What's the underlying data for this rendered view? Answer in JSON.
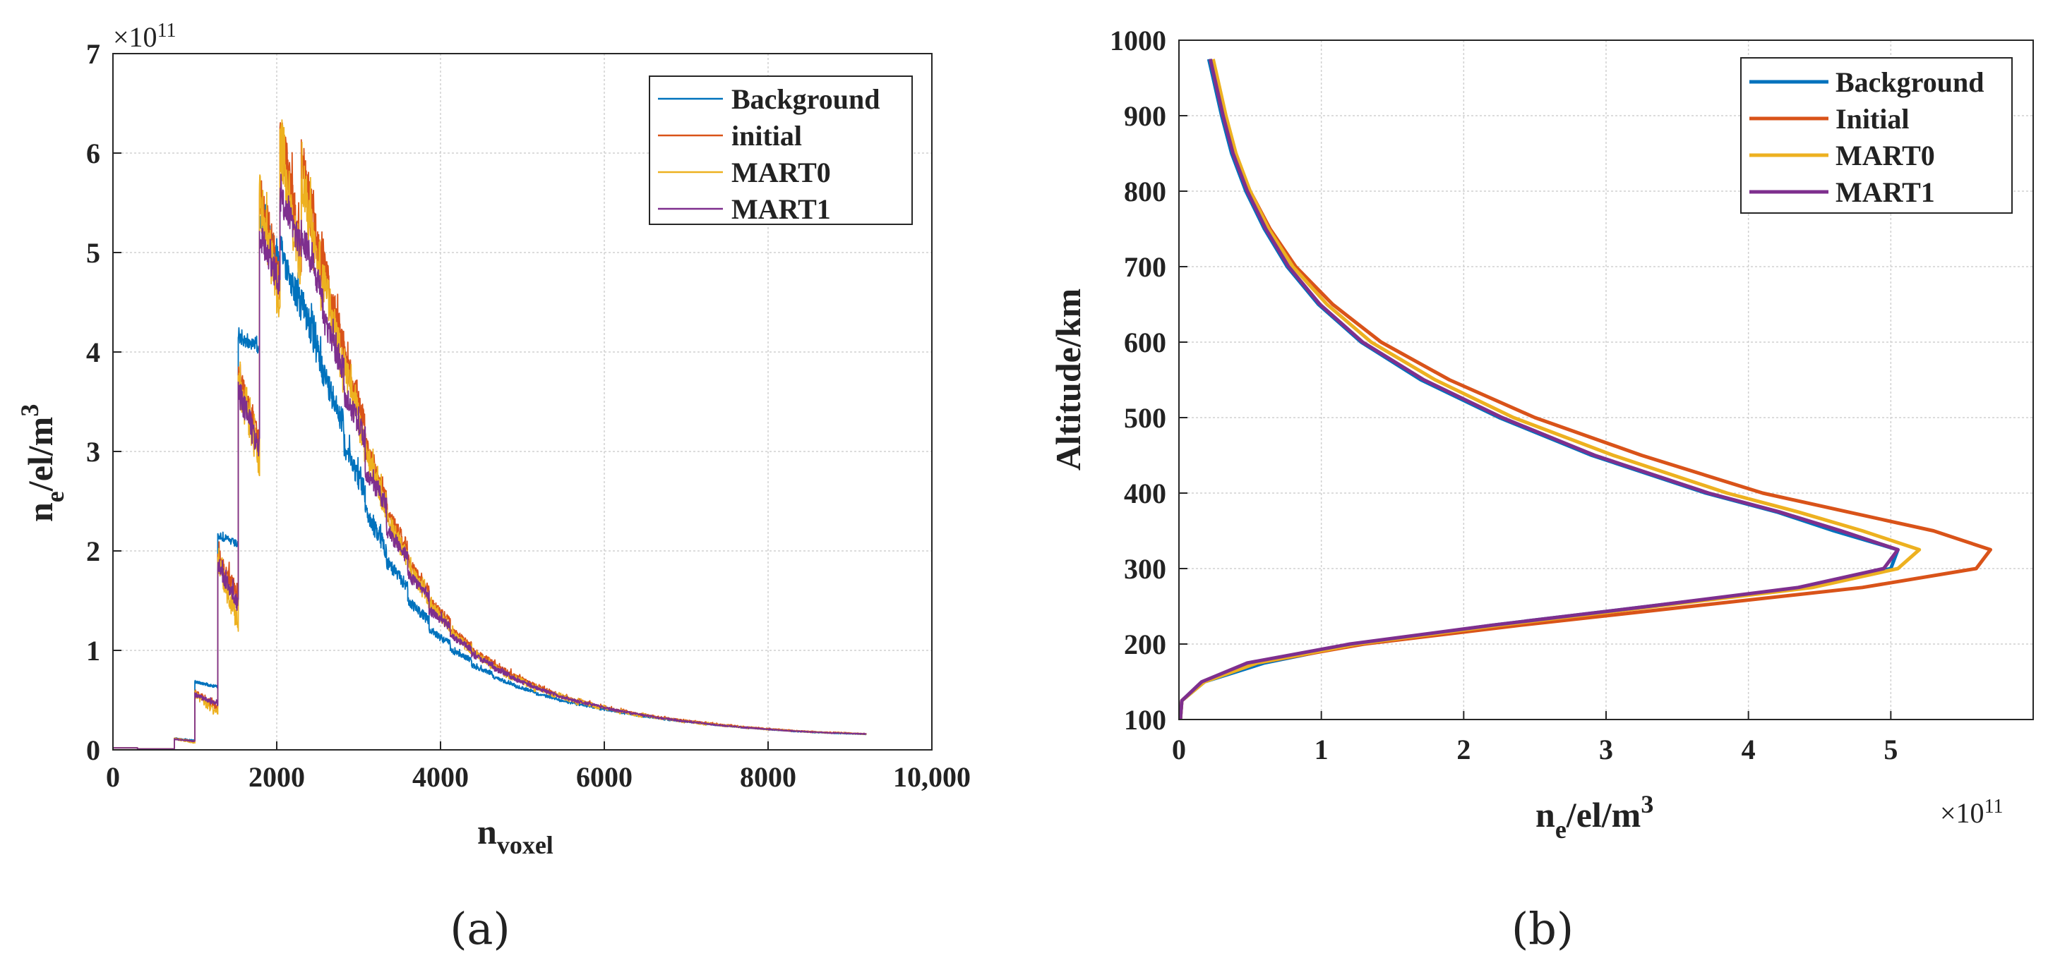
{
  "chart_data": [
    {
      "type": "line",
      "panel": "a",
      "caption": "(a)",
      "xlabel_main": "n",
      "xlabel_sub": "voxel",
      "ylabel_main": "n",
      "ylabel_sub": "e",
      "ylabel_rest": "/el/m",
      "ylabel_sup": "3",
      "y_multiplier_base": "×10",
      "y_multiplier_exp": "11",
      "xlim": [
        0,
        10000
      ],
      "ylim": [
        0,
        7
      ],
      "x_ticks": [
        0,
        2000,
        4000,
        6000,
        8000,
        10000
      ],
      "x_tick_labels": [
        "0",
        "2000",
        "4000",
        "6000",
        "8000",
        "10,000"
      ],
      "y_ticks": [
        0,
        1,
        2,
        3,
        4,
        5,
        6,
        7
      ],
      "y_tick_labels": [
        "0",
        "1",
        "2",
        "3",
        "4",
        "5",
        "6",
        "7"
      ],
      "grid": true,
      "legend_position": "top-right",
      "series": [
        {
          "name": "Background",
          "color": "#0072BD",
          "line_width": 1.2,
          "block_tops": [
            0.02,
            0.01,
            0.01,
            0.12,
            0.7,
            2.2,
            4.2,
            5.55,
            5.2,
            4.7,
            3.95,
            3.2,
            2.5,
            1.95,
            1.55,
            1.25,
            1.03,
            0.87,
            0.75,
            0.66,
            0.58,
            0.52,
            0.47,
            0.42,
            0.38,
            0.345,
            0.315,
            0.29,
            0.265,
            0.245,
            0.225,
            0.205,
            0.19,
            0.178,
            0.17
          ],
          "block_bottoms": [
            0.02,
            0.01,
            0.01,
            0.1,
            0.65,
            2.1,
            4.1,
            5.0,
            4.6,
            4.0,
            3.4,
            2.7,
            2.1,
            1.7,
            1.35,
            1.1,
            0.93,
            0.79,
            0.68,
            0.6,
            0.53,
            0.47,
            0.43,
            0.39,
            0.35,
            0.32,
            0.29,
            0.27,
            0.245,
            0.225,
            0.21,
            0.195,
            0.18,
            0.17,
            0.16
          ]
        },
        {
          "name": "initial",
          "color": "#D95319",
          "line_width": 1.2,
          "block_tops": [
            0.02,
            0.01,
            0.01,
            0.12,
            0.62,
            2.05,
            3.9,
            5.85,
            6.55,
            6.25,
            5.1,
            4.15,
            3.2,
            2.5,
            1.95,
            1.55,
            1.25,
            1.05,
            0.9,
            0.77,
            0.67,
            0.58,
            0.52,
            0.46,
            0.41,
            0.37,
            0.335,
            0.305,
            0.28,
            0.255,
            0.235,
            0.215,
            0.2,
            0.188,
            0.18
          ],
          "block_bottoms": [
            0.02,
            0.01,
            0.01,
            0.09,
            0.45,
            1.65,
            3.2,
            4.9,
            5.3,
            5.0,
            4.2,
            3.4,
            2.65,
            2.1,
            1.65,
            1.33,
            1.08,
            0.9,
            0.77,
            0.67,
            0.58,
            0.5,
            0.45,
            0.4,
            0.36,
            0.33,
            0.3,
            0.275,
            0.25,
            0.23,
            0.215,
            0.2,
            0.186,
            0.175,
            0.165
          ]
        },
        {
          "name": "MART0",
          "color": "#EDB120",
          "line_width": 1.2,
          "block_tops": [
            0.02,
            0.01,
            0.01,
            0.12,
            0.6,
            2.0,
            3.85,
            5.8,
            6.4,
            6.1,
            5.0,
            4.1,
            3.15,
            2.45,
            1.92,
            1.52,
            1.23,
            1.03,
            0.88,
            0.76,
            0.66,
            0.57,
            0.51,
            0.455,
            0.405,
            0.365,
            0.33,
            0.3,
            0.275,
            0.25,
            0.23,
            0.212,
            0.197,
            0.185,
            0.177
          ],
          "block_bottoms": [
            0.02,
            0.01,
            0.01,
            0.08,
            0.4,
            1.4,
            3.05,
            4.7,
            5.1,
            4.8,
            4.0,
            3.25,
            2.55,
            2.0,
            1.58,
            1.28,
            1.04,
            0.87,
            0.74,
            0.64,
            0.56,
            0.49,
            0.44,
            0.39,
            0.35,
            0.32,
            0.29,
            0.265,
            0.245,
            0.225,
            0.208,
            0.194,
            0.181,
            0.171,
            0.162
          ]
        },
        {
          "name": "MART1",
          "color": "#7E2F8E",
          "line_width": 1.2,
          "block_tops": [
            0.02,
            0.01,
            0.01,
            0.11,
            0.58,
            1.95,
            3.75,
            5.35,
            5.7,
            5.35,
            4.5,
            3.7,
            2.9,
            2.3,
            1.82,
            1.45,
            1.18,
            0.99,
            0.85,
            0.73,
            0.64,
            0.56,
            0.5,
            0.445,
            0.4,
            0.36,
            0.325,
            0.295,
            0.27,
            0.248,
            0.228,
            0.21,
            0.195,
            0.183,
            0.175
          ],
          "block_bottoms": [
            0.02,
            0.01,
            0.01,
            0.09,
            0.48,
            1.55,
            3.15,
            4.8,
            5.2,
            4.75,
            3.95,
            3.25,
            2.55,
            2.0,
            1.6,
            1.28,
            1.05,
            0.88,
            0.75,
            0.65,
            0.57,
            0.5,
            0.45,
            0.4,
            0.36,
            0.325,
            0.295,
            0.27,
            0.245,
            0.226,
            0.21,
            0.195,
            0.182,
            0.172,
            0.163
          ]
        }
      ],
      "block_x_starts": [
        0,
        300,
        500,
        750,
        1000,
        1280,
        1530,
        1790,
        2040,
        2300,
        2560,
        2820,
        3080,
        3340,
        3600,
        3860,
        4120,
        4380,
        4640,
        4900,
        5160,
        5420,
        5680,
        5940,
        6200,
        6460,
        6720,
        6980,
        7240,
        7500,
        7760,
        8020,
        8280,
        8540,
        8800
      ],
      "x_end": 9200
    },
    {
      "type": "line",
      "panel": "b",
      "caption": "(b)",
      "xlabel_main": "n",
      "xlabel_sub": "e",
      "xlabel_rest": "/el/m",
      "xlabel_sup": "3",
      "ylabel": "Altitude/km",
      "x_multiplier_base": "×10",
      "x_multiplier_exp": "11",
      "xlim": [
        0,
        6
      ],
      "ylim": [
        100,
        1000
      ],
      "x_ticks": [
        0,
        1,
        2,
        3,
        4,
        5
      ],
      "x_tick_labels": [
        "0",
        "1",
        "2",
        "3",
        "4",
        "5"
      ],
      "y_ticks": [
        100,
        200,
        300,
        400,
        500,
        600,
        700,
        800,
        900,
        1000
      ],
      "y_tick_labels": [
        "100",
        "200",
        "300",
        "400",
        "500",
        "600",
        "700",
        "800",
        "900",
        "1000"
      ],
      "grid": true,
      "legend_position": "top-right",
      "altitudes": [
        100,
        125,
        150,
        175,
        200,
        225,
        250,
        275,
        300,
        325,
        350,
        375,
        400,
        450,
        500,
        550,
        600,
        650,
        700,
        750,
        800,
        850,
        900,
        950,
        975
      ],
      "series": [
        {
          "name": "Background",
          "color": "#0072BD",
          "line_width": 5,
          "x": [
            0.01,
            0.02,
            0.18,
            0.6,
            1.25,
            2.2,
            3.3,
            4.4,
            5.0,
            5.05,
            4.6,
            4.2,
            3.7,
            2.9,
            2.25,
            1.7,
            1.28,
            0.98,
            0.76,
            0.6,
            0.47,
            0.37,
            0.3,
            0.24,
            0.21
          ]
        },
        {
          "name": "Initial",
          "color": "#D95319",
          "line_width": 5,
          "x": [
            0.01,
            0.02,
            0.17,
            0.55,
            1.3,
            2.4,
            3.6,
            4.8,
            5.6,
            5.7,
            5.3,
            4.7,
            4.1,
            3.25,
            2.5,
            1.9,
            1.42,
            1.08,
            0.82,
            0.64,
            0.5,
            0.39,
            0.31,
            0.25,
            0.22
          ]
        },
        {
          "name": "MART0",
          "color": "#EDB120",
          "line_width": 5,
          "x": [
            0.01,
            0.02,
            0.18,
            0.55,
            1.25,
            2.25,
            3.35,
            4.45,
            5.05,
            5.2,
            4.8,
            4.35,
            3.85,
            3.05,
            2.35,
            1.8,
            1.35,
            1.04,
            0.8,
            0.63,
            0.5,
            0.4,
            0.33,
            0.27,
            0.24
          ]
        },
        {
          "name": "MART1",
          "color": "#7E2F8E",
          "line_width": 5,
          "x": [
            0.01,
            0.02,
            0.16,
            0.48,
            1.2,
            2.2,
            3.3,
            4.35,
            4.95,
            5.05,
            4.65,
            4.22,
            3.72,
            2.92,
            2.27,
            1.72,
            1.29,
            0.99,
            0.77,
            0.61,
            0.48,
            0.38,
            0.31,
            0.25,
            0.22
          ]
        }
      ]
    }
  ]
}
